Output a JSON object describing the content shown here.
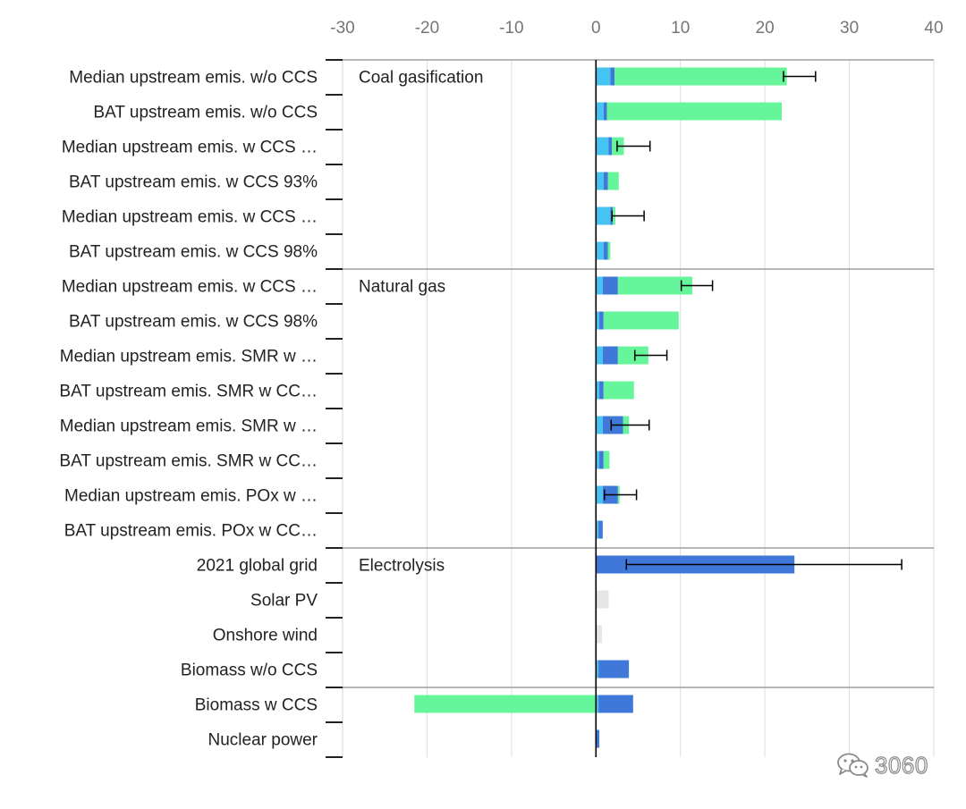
{
  "chart_data": {
    "type": "bar",
    "orientation": "horizontal",
    "stacked": true,
    "xlim": [
      -30,
      40
    ],
    "xticks": [
      -30,
      -20,
      -10,
      0,
      10,
      20,
      30,
      40
    ],
    "x_axis_position": "top",
    "grid": true,
    "legend": "none",
    "group_labels": [
      "Coal gasification",
      "Natural gas",
      "Electrolysis"
    ],
    "series": [
      {
        "name": "component-light-blue",
        "color": "#45c4f2"
      },
      {
        "name": "component-dark-blue",
        "color": "#3f78d8"
      },
      {
        "name": "component-green",
        "color": "#67f59b"
      },
      {
        "name": "component-light-gray",
        "color": "#e6e6e6"
      }
    ],
    "categories": [
      "Median upstream emis. w/o CCS",
      "BAT upstream emis. w/o CCS",
      "Median upstream emis. w CCS …",
      "BAT upstream emis. w CCS 93%",
      "Median upstream emis. w CCS …",
      "BAT upstream emis. w CCS 98%",
      "Median upstream emis. w CCS …",
      "BAT upstream emis. w CCS 98%",
      "Median upstream emis. SMR w …",
      "BAT upstream emis. SMR w CC…",
      "Median upstream emis. SMR w …",
      "BAT upstream emis. SMR w CC…",
      "Median upstream emis. POx w …",
      "BAT upstream emis. POx w CC…",
      "2021 global grid",
      "Solar PV",
      "Onshore wind",
      "Biomass w/o CCS",
      "Biomass w CCS",
      "Nuclear power"
    ],
    "rows": [
      {
        "segments": [
          [
            0,
            1.7,
            0
          ],
          [
            1.7,
            2.2,
            1
          ],
          [
            2.2,
            22.6,
            2
          ]
        ],
        "error": [
          22.2,
          26.0
        ]
      },
      {
        "segments": [
          [
            0,
            0.9,
            0
          ],
          [
            0.9,
            1.3,
            1
          ],
          [
            1.3,
            22.0,
            2
          ]
        ],
        "error": null
      },
      {
        "segments": [
          [
            0,
            1.5,
            0
          ],
          [
            1.5,
            1.9,
            1
          ],
          [
            1.9,
            3.3,
            2
          ]
        ],
        "error": [
          2.5,
          6.4
        ]
      },
      {
        "segments": [
          [
            0,
            0.9,
            0
          ],
          [
            0.9,
            1.4,
            1
          ],
          [
            1.4,
            2.7,
            2
          ]
        ],
        "error": null
      },
      {
        "segments": [
          [
            0,
            1.7,
            0
          ],
          [
            1.7,
            2.0,
            1
          ],
          [
            2.0,
            2.3,
            2
          ]
        ],
        "error": [
          1.9,
          5.7
        ]
      },
      {
        "segments": [
          [
            0,
            0.9,
            0
          ],
          [
            0.9,
            1.4,
            1
          ],
          [
            1.4,
            1.7,
            2
          ]
        ],
        "error": null
      },
      {
        "segments": [
          [
            0,
            0.8,
            0
          ],
          [
            0.8,
            2.6,
            1
          ],
          [
            2.6,
            11.4,
            2
          ]
        ],
        "error": [
          10.1,
          13.8
        ]
      },
      {
        "segments": [
          [
            0,
            0.4,
            0
          ],
          [
            0.4,
            0.9,
            1
          ],
          [
            0.9,
            9.8,
            2
          ]
        ],
        "error": null
      },
      {
        "segments": [
          [
            0,
            0.8,
            0
          ],
          [
            0.8,
            2.6,
            1
          ],
          [
            2.6,
            6.2,
            2
          ]
        ],
        "error": [
          4.6,
          8.4
        ]
      },
      {
        "segments": [
          [
            0,
            0.4,
            0
          ],
          [
            0.4,
            0.9,
            1
          ],
          [
            0.9,
            4.5,
            2
          ]
        ],
        "error": null
      },
      {
        "segments": [
          [
            0,
            0.8,
            0
          ],
          [
            0.8,
            3.2,
            1
          ],
          [
            3.2,
            3.9,
            2
          ]
        ],
        "error": [
          1.8,
          6.3
        ]
      },
      {
        "segments": [
          [
            0,
            0.4,
            0
          ],
          [
            0.4,
            0.9,
            1
          ],
          [
            0.9,
            1.6,
            2
          ]
        ],
        "error": null
      },
      {
        "segments": [
          [
            0,
            0.8,
            0
          ],
          [
            0.8,
            2.6,
            1
          ],
          [
            2.6,
            2.8,
            2
          ]
        ],
        "error": [
          1.0,
          4.8
        ]
      },
      {
        "segments": [
          [
            0,
            0.3,
            0
          ],
          [
            0.3,
            0.8,
            1
          ]
        ],
        "error": null
      },
      {
        "segments": [
          [
            0,
            23.5,
            1
          ]
        ],
        "error": [
          3.6,
          36.2
        ]
      },
      {
        "segments": [
          [
            0,
            1.5,
            3
          ]
        ],
        "error": null
      },
      {
        "segments": [
          [
            0,
            0.7,
            3
          ]
        ],
        "error": null
      },
      {
        "segments": [
          [
            0,
            0.3,
            0
          ],
          [
            0.3,
            3.9,
            1
          ]
        ],
        "error": null
      },
      {
        "segments": [
          [
            -21.5,
            0,
            2
          ],
          [
            0,
            0.3,
            0
          ],
          [
            0.3,
            4.4,
            1
          ]
        ],
        "error": null
      },
      {
        "segments": [
          [
            0,
            0.4,
            1
          ]
        ],
        "error": null
      }
    ]
  },
  "watermark": {
    "text": "3060",
    "icon": "wechat-icon"
  }
}
